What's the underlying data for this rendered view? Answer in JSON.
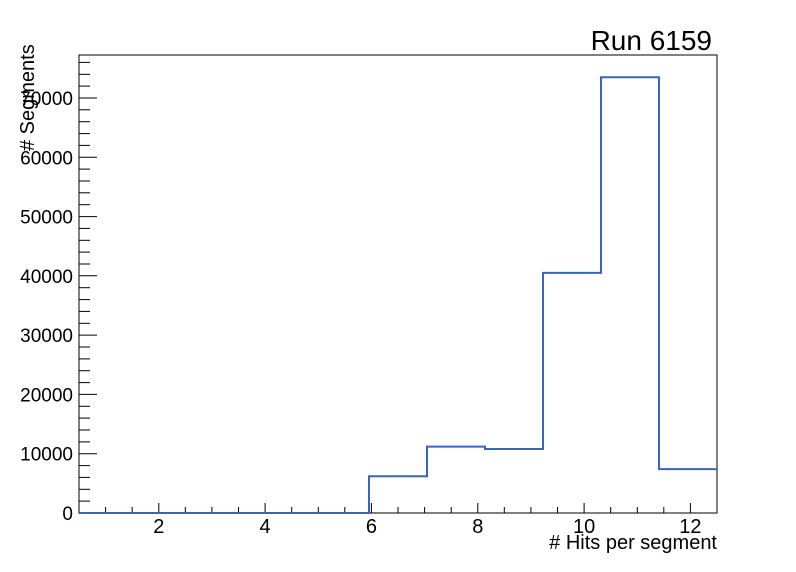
{
  "chart_data": {
    "type": "bar",
    "subtype": "step-histogram",
    "title": "Run 6159",
    "xlabel": "# Hits per segment",
    "ylabel": "# Segments",
    "xlim": [
      0.5,
      12.5
    ],
    "ylim": [
      0,
      77250
    ],
    "grid": false,
    "legend_position": "none",
    "bin_edges": [
      0.5,
      1.591,
      2.682,
      3.773,
      4.864,
      5.955,
      7.045,
      8.136,
      9.227,
      10.318,
      11.409,
      12.5
    ],
    "counts": [
      0,
      0,
      0,
      0,
      0,
      6200,
      11200,
      10800,
      40500,
      73500,
      7400
    ],
    "x_ticks": {
      "major_values": [
        2,
        4,
        6,
        8,
        10,
        12
      ],
      "major_labels": [
        "2",
        "4",
        "6",
        "8",
        "10",
        "12"
      ],
      "minor_step": 0.5
    },
    "y_ticks": {
      "major_values": [
        0,
        10000,
        20000,
        30000,
        40000,
        50000,
        60000,
        70000
      ],
      "major_labels": [
        "0",
        "10000",
        "20000",
        "30000",
        "40000",
        "50000",
        "60000",
        "70000"
      ],
      "minor_step": 2000
    },
    "colors": {
      "line": "#3964bd",
      "axis": "#000000",
      "text": "#000000",
      "background": "#ffffff"
    }
  }
}
